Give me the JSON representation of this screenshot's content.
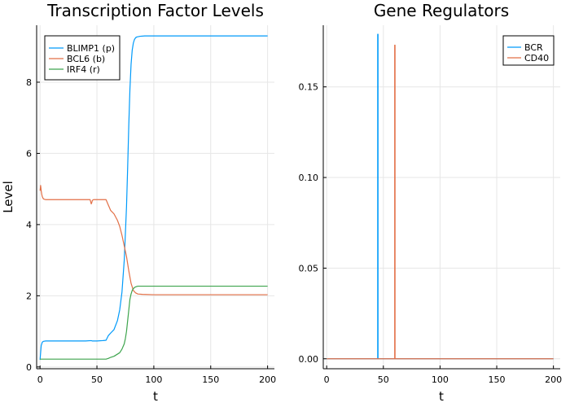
{
  "chart_data": [
    {
      "type": "line",
      "title": "Transcription Factor Levels",
      "xlabel": "t",
      "ylabel": "Level",
      "xlim": [
        -3,
        206
      ],
      "ylim": [
        -0.05,
        9.6
      ],
      "xticks": [
        0,
        50,
        100,
        150,
        200
      ],
      "xtick_labels": [
        "0",
        "50",
        "100",
        "150",
        "200"
      ],
      "yticks": [
        0,
        2,
        4,
        6,
        8
      ],
      "ytick_labels": [
        "0",
        "2",
        "4",
        "6",
        "8"
      ],
      "grid": true,
      "legend": "top-left",
      "series": [
        {
          "name": "BLIMP1 (p)",
          "color": "#009AFA",
          "x": [
            0,
            1,
            2,
            3,
            5,
            10,
            20,
            30,
            40,
            45,
            46,
            50,
            55,
            58,
            60,
            62,
            65,
            68,
            70,
            72,
            74,
            76,
            77,
            78,
            79,
            80,
            81,
            82,
            83,
            84,
            85,
            88,
            92,
            100,
            150,
            200
          ],
          "y": [
            0.2,
            0.6,
            0.7,
            0.72,
            0.73,
            0.73,
            0.73,
            0.73,
            0.73,
            0.74,
            0.73,
            0.73,
            0.74,
            0.75,
            0.88,
            0.95,
            1.05,
            1.3,
            1.6,
            2.1,
            3.0,
            4.5,
            5.6,
            6.8,
            7.8,
            8.5,
            8.9,
            9.1,
            9.2,
            9.25,
            9.27,
            9.29,
            9.3,
            9.3,
            9.3,
            9.3
          ]
        },
        {
          "name": "BCL6 (b)",
          "color": "#E26F46",
          "x": [
            0,
            0.5,
            1,
            1.5,
            2,
            3,
            5,
            8,
            10,
            20,
            30,
            40,
            44,
            45,
            45.5,
            46,
            47,
            50,
            55,
            58,
            60,
            62,
            65,
            68,
            70,
            72,
            74,
            76,
            78,
            80,
            82,
            84,
            86,
            90,
            100,
            150,
            200
          ],
          "y": [
            4.95,
            5.1,
            4.95,
            4.85,
            4.78,
            4.72,
            4.7,
            4.7,
            4.7,
            4.7,
            4.7,
            4.7,
            4.7,
            4.58,
            4.62,
            4.68,
            4.7,
            4.7,
            4.7,
            4.7,
            4.55,
            4.4,
            4.3,
            4.12,
            3.95,
            3.7,
            3.4,
            3.1,
            2.7,
            2.35,
            2.15,
            2.08,
            2.05,
            2.04,
            2.03,
            2.03,
            2.03
          ]
        },
        {
          "name": "IRF4 (r)",
          "color": "#3DA44D",
          "x": [
            0,
            10,
            20,
            40,
            55,
            58,
            60,
            62,
            65,
            68,
            70,
            72,
            74,
            75,
            76,
            77,
            78,
            79,
            80,
            81,
            82,
            83,
            84,
            85,
            86,
            88,
            90,
            100,
            150,
            200
          ],
          "y": [
            0.22,
            0.22,
            0.22,
            0.22,
            0.22,
            0.22,
            0.24,
            0.27,
            0.3,
            0.36,
            0.4,
            0.5,
            0.65,
            0.8,
            1.0,
            1.3,
            1.6,
            1.9,
            2.05,
            2.15,
            2.2,
            2.23,
            2.25,
            2.26,
            2.27,
            2.27,
            2.27,
            2.27,
            2.27,
            2.27
          ]
        }
      ]
    },
    {
      "type": "line",
      "title": "Gene Regulators",
      "xlabel": "t",
      "ylabel": "",
      "xlim": [
        -3,
        206
      ],
      "ylim": [
        -0.0055,
        0.184
      ],
      "xticks": [
        0,
        50,
        100,
        150,
        200
      ],
      "xtick_labels": [
        "0",
        "50",
        "100",
        "150",
        "200"
      ],
      "yticks": [
        0,
        0.05,
        0.1,
        0.15
      ],
      "ytick_labels": [
        "0.00",
        "0.05",
        "0.10",
        "0.15"
      ],
      "grid": true,
      "legend": "top-right",
      "series": [
        {
          "name": "BCR",
          "color": "#009AFA",
          "x": [
            0,
            45,
            45,
            45.3,
            45.3,
            200
          ],
          "y": [
            0,
            0,
            0.179,
            0.179,
            0,
            0
          ]
        },
        {
          "name": "CD40",
          "color": "#E26F46",
          "x": [
            0,
            60,
            60,
            60.3,
            60.3,
            200
          ],
          "y": [
            0,
            0,
            0.173,
            0.173,
            0,
            0
          ]
        }
      ]
    }
  ]
}
